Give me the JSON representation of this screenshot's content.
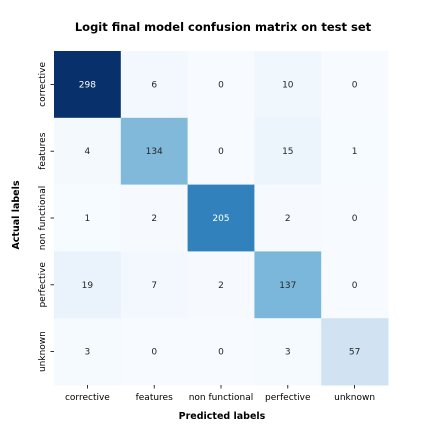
{
  "chart_data": {
    "type": "heatmap",
    "title": "Logit final model confusion matrix on test set",
    "xlabel": "Predicted labels",
    "ylabel": "Actual labels",
    "x_categories": [
      "corrective",
      "features",
      "non functional",
      "perfective",
      "unknown"
    ],
    "y_categories": [
      "corrective",
      "features",
      "non functional",
      "perfective",
      "unknown"
    ],
    "matrix": [
      [
        298,
        6,
        0,
        10,
        0
      ],
      [
        4,
        134,
        0,
        15,
        1
      ],
      [
        1,
        2,
        205,
        2,
        0
      ],
      [
        19,
        7,
        2,
        137,
        0
      ],
      [
        3,
        0,
        0,
        3,
        57
      ]
    ],
    "colormap": "Blues",
    "colorbar": false,
    "grid": false
  }
}
